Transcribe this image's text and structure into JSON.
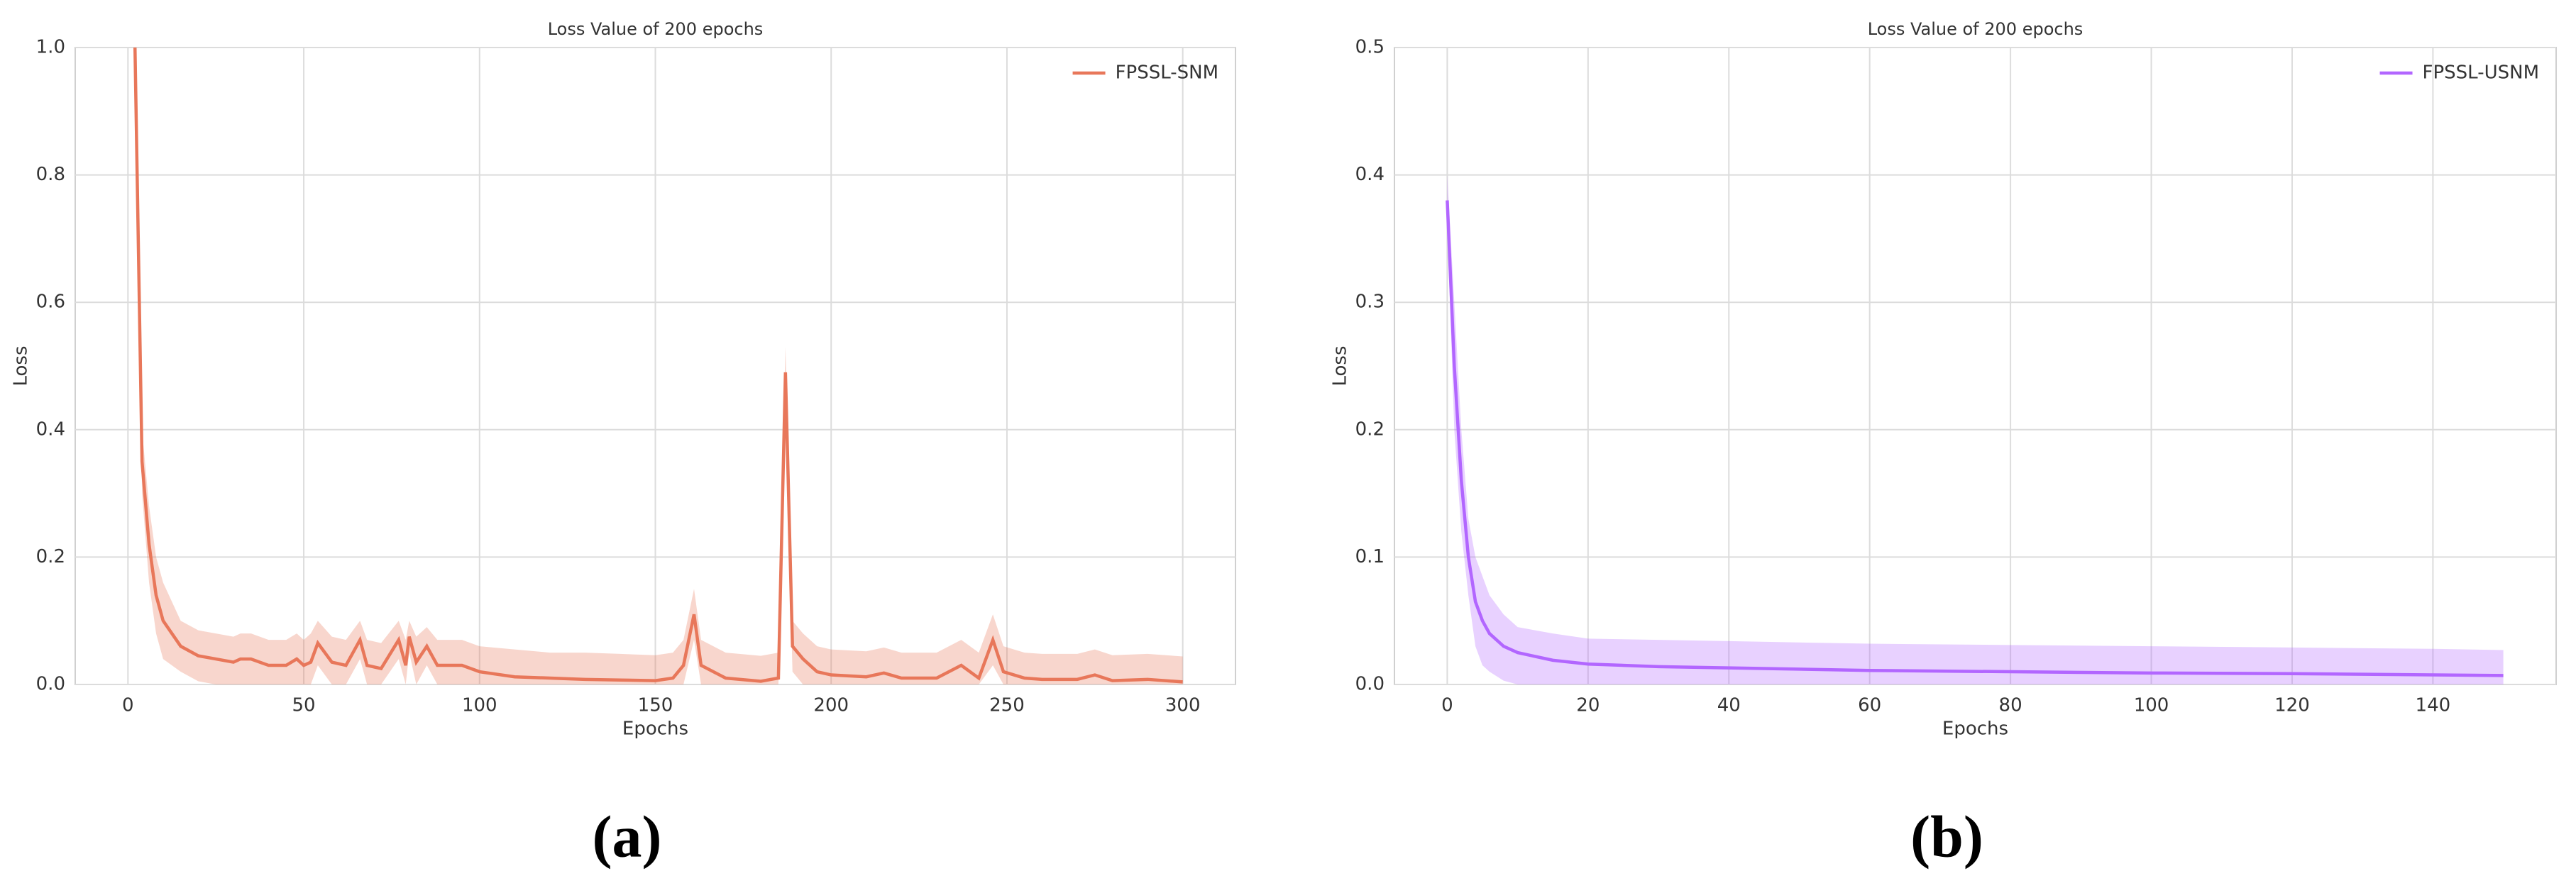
{
  "chart_data": [
    {
      "type": "line",
      "title": "Loss Value of 200 epochs",
      "x_label": "Epochs",
      "y_label": "Loss",
      "panel_label": "(a)",
      "x": [
        2,
        4,
        6,
        8,
        10,
        15,
        20,
        25,
        30,
        32,
        35,
        40,
        45,
        48,
        50,
        52,
        54,
        58,
        62,
        66,
        68,
        72,
        77,
        79,
        80,
        82,
        85,
        88,
        95,
        100,
        110,
        120,
        130,
        140,
        150,
        155,
        158,
        161,
        163,
        170,
        180,
        185,
        187,
        189,
        192,
        196,
        200,
        210,
        215,
        220,
        230,
        237,
        242,
        246,
        249,
        255,
        260,
        270,
        275,
        280,
        290,
        300
      ],
      "series": [
        {
          "name": "FPSSL-SNM",
          "color": "#e8775a",
          "values": [
            1.0,
            0.35,
            0.22,
            0.14,
            0.1,
            0.06,
            0.045,
            0.04,
            0.035,
            0.04,
            0.04,
            0.03,
            0.03,
            0.04,
            0.03,
            0.035,
            0.065,
            0.035,
            0.03,
            0.07,
            0.03,
            0.025,
            0.07,
            0.03,
            0.075,
            0.035,
            0.06,
            0.03,
            0.03,
            0.02,
            0.012,
            0.01,
            0.008,
            0.007,
            0.006,
            0.01,
            0.03,
            0.11,
            0.03,
            0.01,
            0.005,
            0.01,
            0.49,
            0.06,
            0.04,
            0.02,
            0.015,
            0.012,
            0.018,
            0.01,
            0.01,
            0.03,
            0.01,
            0.07,
            0.02,
            0.01,
            0.008,
            0.008,
            0.015,
            0.006,
            0.008,
            0.004
          ],
          "upper": [
            1.0,
            0.4,
            0.28,
            0.2,
            0.16,
            0.1,
            0.085,
            0.08,
            0.075,
            0.08,
            0.08,
            0.07,
            0.07,
            0.08,
            0.07,
            0.08,
            0.1,
            0.075,
            0.07,
            0.1,
            0.07,
            0.065,
            0.1,
            0.07,
            0.1,
            0.075,
            0.09,
            0.07,
            0.07,
            0.06,
            0.055,
            0.05,
            0.05,
            0.048,
            0.046,
            0.05,
            0.07,
            0.15,
            0.07,
            0.05,
            0.045,
            0.05,
            0.53,
            0.1,
            0.08,
            0.06,
            0.055,
            0.052,
            0.058,
            0.05,
            0.05,
            0.07,
            0.05,
            0.11,
            0.06,
            0.05,
            0.048,
            0.048,
            0.055,
            0.046,
            0.048,
            0.044
          ],
          "lower": [
            1.0,
            0.3,
            0.16,
            0.08,
            0.04,
            0.02,
            0.005,
            0,
            0,
            0,
            0,
            0,
            0,
            0,
            0,
            0,
            0.03,
            0,
            0,
            0.04,
            0,
            0,
            0.04,
            0,
            0.05,
            0,
            0.03,
            0,
            0,
            0,
            0,
            0,
            0,
            0,
            0,
            0,
            0,
            0.07,
            0,
            0,
            0,
            0,
            0.45,
            0.02,
            0,
            0,
            0,
            0,
            0,
            0,
            0,
            0,
            0,
            0.03,
            0,
            0,
            0,
            0,
            0,
            0,
            0,
            0
          ]
        }
      ],
      "xlim": [
        -15,
        315
      ],
      "xticks": [
        0,
        50,
        100,
        150,
        200,
        250,
        300
      ],
      "ylim": [
        0,
        1
      ],
      "yticks": [
        {
          "value": 0,
          "label": "0.0"
        },
        0.2,
        0.4,
        0.6,
        0.8,
        {
          "value": 1,
          "label": "1.0"
        }
      ],
      "grid": true,
      "legend": "upper right"
    },
    {
      "type": "line",
      "title": "Loss Value of 200 epochs",
      "x_label": "Epochs",
      "y_label": "Loss",
      "panel_label": "(b)",
      "x": [
        0,
        1,
        2,
        3,
        4,
        5,
        6,
        8,
        10,
        15,
        20,
        30,
        40,
        60,
        80,
        100,
        120,
        140,
        150
      ],
      "series": [
        {
          "name": "FPSSL-USNM",
          "color": "#b266ff",
          "values": [
            0.38,
            0.25,
            0.16,
            0.1,
            0.065,
            0.05,
            0.04,
            0.03,
            0.025,
            0.019,
            0.016,
            0.014,
            0.013,
            0.011,
            0.01,
            0.009,
            0.0085,
            0.0075,
            0.007
          ],
          "upper": [
            0.4,
            0.3,
            0.2,
            0.13,
            0.1,
            0.085,
            0.07,
            0.055,
            0.045,
            0.04,
            0.036,
            0.035,
            0.034,
            0.032,
            0.031,
            0.03,
            0.029,
            0.028,
            0.027
          ],
          "lower": [
            0.36,
            0.2,
            0.12,
            0.07,
            0.03,
            0.015,
            0.01,
            0.003,
            0,
            0,
            0,
            0,
            0,
            0,
            0,
            0,
            0,
            0,
            0
          ]
        }
      ],
      "xlim": [
        -7.5,
        157.5
      ],
      "xticks": [
        0,
        20,
        40,
        60,
        80,
        100,
        120,
        140
      ],
      "ylim": [
        0,
        0.5
      ],
      "yticks": [
        {
          "value": 0,
          "label": "0.0"
        },
        0.1,
        0.2,
        0.3,
        0.4,
        0.5
      ],
      "grid": true,
      "legend": "upper right"
    }
  ]
}
